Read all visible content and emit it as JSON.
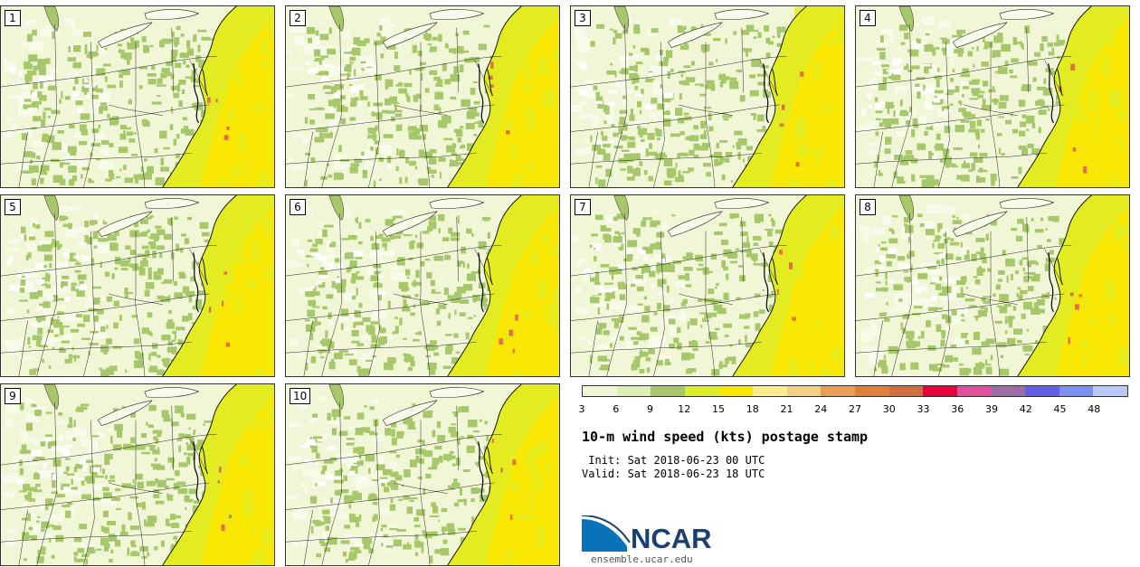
{
  "panels": [
    {
      "label": "1"
    },
    {
      "label": "2"
    },
    {
      "label": "3"
    },
    {
      "label": "4"
    },
    {
      "label": "5"
    },
    {
      "label": "6"
    },
    {
      "label": "7"
    },
    {
      "label": "8"
    },
    {
      "label": "9"
    },
    {
      "label": "10"
    }
  ],
  "map_layer_colors": {
    "ocean_base": "#e2ec20",
    "offshore_high": "#fbe800",
    "inland_base": "#f1f7d6",
    "inland_light": "#f7fbe9",
    "inland_moderate": "#a6c86a",
    "calm": "#ffffff",
    "borders": "#222222",
    "coastline": "#000000",
    "gust_spot": "#e05050"
  },
  "colorbar": {
    "colors": [
      "#f1f7d6",
      "#dbefb4",
      "#a6c86a",
      "#dbec28",
      "#fbe800",
      "#fcec8c",
      "#f4cf84",
      "#e99c54",
      "#e17f3c",
      "#d0703e",
      "#e8003a",
      "#e0509c",
      "#a06ca8",
      "#6060e8",
      "#7c90f4",
      "#b8c8f8"
    ],
    "ticks": [
      "3",
      "6",
      "9",
      "12",
      "15",
      "18",
      "21",
      "24",
      "27",
      "30",
      "33",
      "36",
      "39",
      "42",
      "45",
      "48"
    ]
  },
  "title": "10-m wind speed (kts) postage stamp",
  "init_line": " Init: Sat 2018-06-23 00 UTC",
  "valid_line": "Valid: Sat 2018-06-23 18 UTC",
  "logo": {
    "text": "NCAR",
    "dark": "#0a72b8",
    "navy": "#1a3f73"
  },
  "url": "ensemble.ucar.edu"
}
